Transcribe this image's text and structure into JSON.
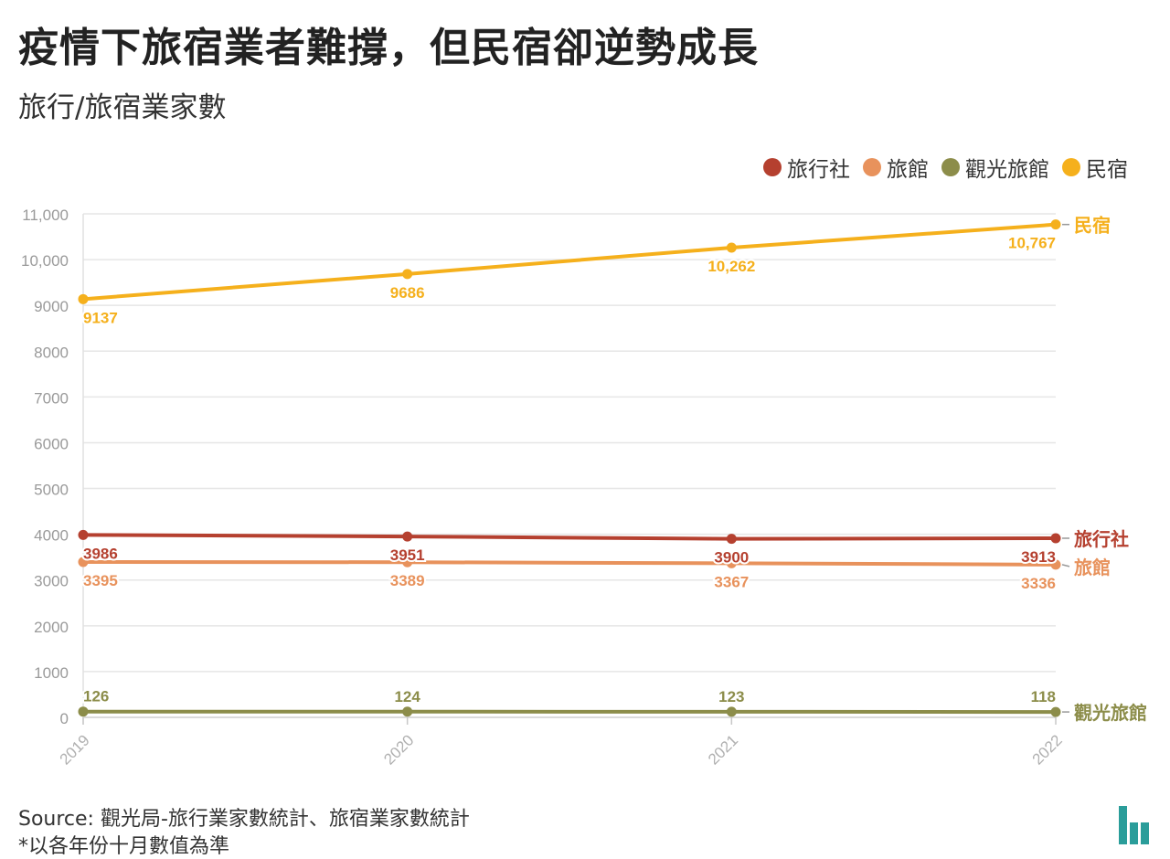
{
  "header": {
    "title": "疫情下旅宿業者難撐，但民宿卻逆勢成長",
    "subtitle": "旅行/旅宿業家數"
  },
  "legend": [
    {
      "label": "旅行社",
      "color": "#b5402f"
    },
    {
      "label": "旅館",
      "color": "#e8925c"
    },
    {
      "label": "觀光旅館",
      "color": "#8c8d4a"
    },
    {
      "label": "民宿",
      "color": "#f5b01c"
    }
  ],
  "footer": {
    "source": "Source: 觀光局-旅行業家數統計、旅宿業家數統計",
    "footnote": "*以各年份十月數值為準"
  },
  "chart_data": {
    "type": "line",
    "x": [
      "2019",
      "2020",
      "2021",
      "2022"
    ],
    "ylim": [
      0,
      11000
    ],
    "yticks": [
      0,
      1000,
      2000,
      3000,
      4000,
      5000,
      6000,
      7000,
      8000,
      9000,
      10000,
      11000
    ],
    "ytick_labels": [
      "0",
      "1000",
      "2000",
      "3000",
      "4000",
      "5000",
      "6000",
      "7000",
      "8000",
      "9000",
      "10,000",
      "11,000"
    ],
    "grid": true,
    "legend_position": "top-right",
    "series": [
      {
        "name": "旅行社",
        "color": "#b5402f",
        "values": [
          3986,
          3951,
          3900,
          3913
        ],
        "labels": [
          "3986",
          "3951",
          "3900",
          "3913"
        ],
        "label_side": "below"
      },
      {
        "name": "旅館",
        "color": "#e8925c",
        "values": [
          3395,
          3389,
          3367,
          3336
        ],
        "labels": [
          "3395",
          "3389",
          "3367",
          "3336"
        ],
        "label_side": "below"
      },
      {
        "name": "觀光旅館",
        "color": "#8c8d4a",
        "values": [
          126,
          124,
          123,
          118
        ],
        "labels": [
          "126",
          "124",
          "123",
          "118"
        ],
        "label_side": "above"
      },
      {
        "name": "民宿",
        "color": "#f5b01c",
        "values": [
          9137,
          9686,
          10262,
          10767
        ],
        "labels": [
          "9137",
          "9686",
          "10,262",
          "10,767"
        ],
        "label_side": "below"
      }
    ]
  }
}
